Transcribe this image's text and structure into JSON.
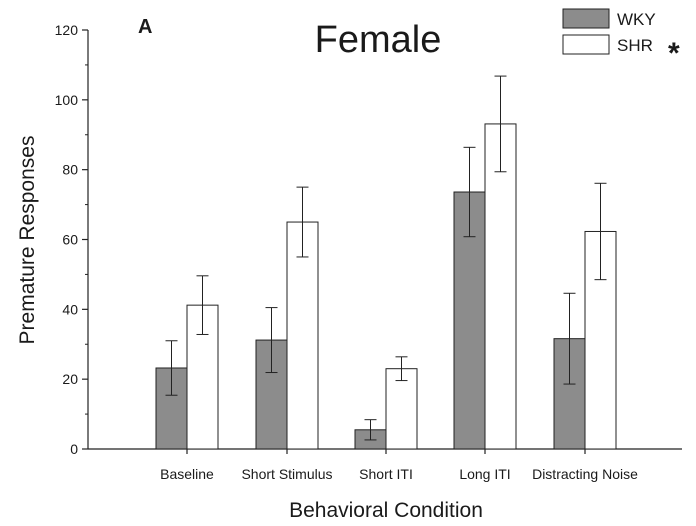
{
  "chart_data": {
    "type": "bar",
    "panel_label": "A",
    "title": "Female",
    "xlabel": "Behavioral Condition",
    "ylabel": "Premature Responses",
    "ylim": [
      0,
      120
    ],
    "yticks": [
      0,
      20,
      40,
      60,
      80,
      100,
      120
    ],
    "categories": [
      "Baseline",
      "Short Stimulus",
      "Short ITI",
      "Long ITI",
      "Distracting Noise"
    ],
    "series": [
      {
        "name": "WKY",
        "color": "#8c8c8c",
        "values": [
          23.2,
          31.2,
          5.5,
          73.6,
          31.6
        ],
        "error": [
          7.8,
          9.3,
          2.9,
          12.8,
          13.0
        ]
      },
      {
        "name": "SHR",
        "color": "#ffffff",
        "values": [
          41.2,
          65.0,
          23.0,
          93.1,
          62.3
        ],
        "error": [
          8.4,
          10.0,
          3.4,
          13.7,
          13.8
        ]
      }
    ],
    "significance_marker": "*",
    "legend_position": "top-right",
    "grid": false
  }
}
